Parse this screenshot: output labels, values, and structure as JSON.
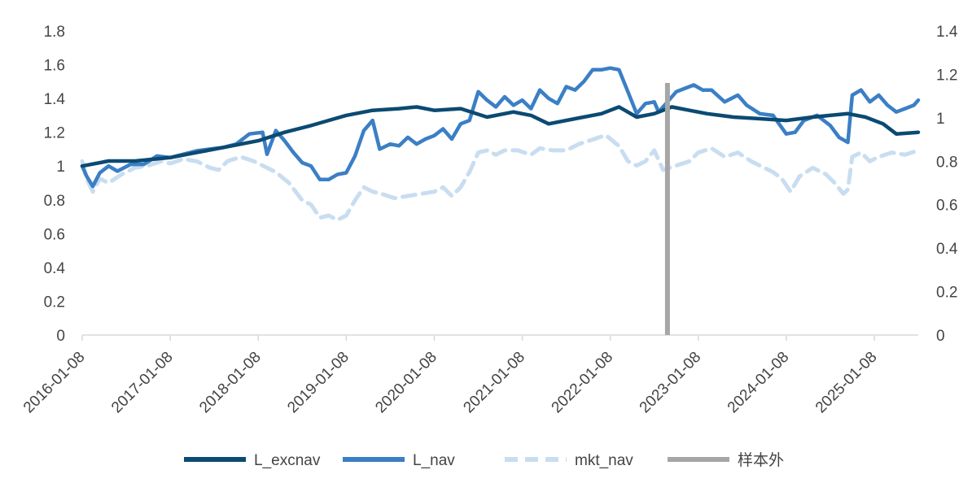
{
  "chart_data": {
    "type": "line",
    "title": "",
    "y_left": {
      "ticks": [
        "0",
        "0.2",
        "0.4",
        "0.6",
        "0.8",
        "1",
        "1.2",
        "1.4",
        "1.6",
        "1.8"
      ],
      "range": [
        0,
        1.8
      ]
    },
    "y_right": {
      "ticks": [
        "0",
        "0.2",
        "0.4",
        "0.6",
        "0.8",
        "1",
        "1.2",
        "1.4"
      ],
      "range": [
        0,
        1.4
      ]
    },
    "x": {
      "range": [
        2016.0,
        2025.5
      ],
      "ticks": [
        {
          "label": "2016-01-08",
          "t": 2016.0
        },
        {
          "label": "2017-01-08",
          "t": 2017.0
        },
        {
          "label": "2018-01-08",
          "t": 2018.0
        },
        {
          "label": "2019-01-08",
          "t": 2019.0
        },
        {
          "label": "2020-01-08",
          "t": 2020.0
        },
        {
          "label": "2021-01-08",
          "t": 2021.0
        },
        {
          "label": "2022-01-08",
          "t": 2022.0
        },
        {
          "label": "2023-01-08",
          "t": 2023.0
        },
        {
          "label": "2024-01-08",
          "t": 2024.0
        },
        {
          "label": "2025-01-08",
          "t": 2025.0
        }
      ]
    },
    "out_of_sample_start": 2022.65,
    "series": [
      {
        "name": "L_excnav",
        "axis": "left",
        "color": "#0b4a72",
        "style": "solid",
        "points": [
          [
            2016.0,
            1.0
          ],
          [
            2016.3,
            1.03
          ],
          [
            2016.6,
            1.03
          ],
          [
            2017.0,
            1.05
          ],
          [
            2017.3,
            1.08
          ],
          [
            2017.6,
            1.11
          ],
          [
            2018.0,
            1.15
          ],
          [
            2018.3,
            1.2
          ],
          [
            2018.6,
            1.24
          ],
          [
            2018.8,
            1.27
          ],
          [
            2019.0,
            1.3
          ],
          [
            2019.3,
            1.33
          ],
          [
            2019.6,
            1.34
          ],
          [
            2019.8,
            1.35
          ],
          [
            2020.0,
            1.33
          ],
          [
            2020.3,
            1.34
          ],
          [
            2020.6,
            1.29
          ],
          [
            2020.9,
            1.32
          ],
          [
            2021.1,
            1.3
          ],
          [
            2021.3,
            1.25
          ],
          [
            2021.6,
            1.28
          ],
          [
            2021.9,
            1.31
          ],
          [
            2022.1,
            1.35
          ],
          [
            2022.3,
            1.29
          ],
          [
            2022.5,
            1.31
          ],
          [
            2022.7,
            1.35
          ],
          [
            2022.9,
            1.33
          ],
          [
            2023.1,
            1.31
          ],
          [
            2023.4,
            1.29
          ],
          [
            2023.7,
            1.28
          ],
          [
            2024.0,
            1.27
          ],
          [
            2024.3,
            1.29
          ],
          [
            2024.5,
            1.3
          ],
          [
            2024.7,
            1.31
          ],
          [
            2024.9,
            1.29
          ],
          [
            2025.1,
            1.25
          ],
          [
            2025.25,
            1.19
          ],
          [
            2025.5,
            1.2
          ]
        ]
      },
      {
        "name": "L_nav",
        "axis": "left",
        "color": "#3b7fc5",
        "style": "solid",
        "points": [
          [
            2016.0,
            1.0
          ],
          [
            2016.05,
            0.94
          ],
          [
            2016.12,
            0.88
          ],
          [
            2016.2,
            0.96
          ],
          [
            2016.3,
            1.0
          ],
          [
            2016.4,
            0.97
          ],
          [
            2016.55,
            1.01
          ],
          [
            2016.7,
            1.01
          ],
          [
            2016.85,
            1.06
          ],
          [
            2017.0,
            1.05
          ],
          [
            2017.15,
            1.07
          ],
          [
            2017.3,
            1.09
          ],
          [
            2017.45,
            1.1
          ],
          [
            2017.6,
            1.11
          ],
          [
            2017.75,
            1.13
          ],
          [
            2017.9,
            1.19
          ],
          [
            2018.05,
            1.2
          ],
          [
            2018.1,
            1.07
          ],
          [
            2018.2,
            1.21
          ],
          [
            2018.3,
            1.15
          ],
          [
            2018.4,
            1.08
          ],
          [
            2018.5,
            1.02
          ],
          [
            2018.6,
            1.0
          ],
          [
            2018.7,
            0.92
          ],
          [
            2018.8,
            0.92
          ],
          [
            2018.9,
            0.95
          ],
          [
            2019.0,
            0.96
          ],
          [
            2019.1,
            1.06
          ],
          [
            2019.2,
            1.21
          ],
          [
            2019.3,
            1.27
          ],
          [
            2019.38,
            1.1
          ],
          [
            2019.5,
            1.13
          ],
          [
            2019.6,
            1.12
          ],
          [
            2019.7,
            1.17
          ],
          [
            2019.8,
            1.13
          ],
          [
            2019.9,
            1.16
          ],
          [
            2020.0,
            1.18
          ],
          [
            2020.1,
            1.22
          ],
          [
            2020.2,
            1.16
          ],
          [
            2020.3,
            1.25
          ],
          [
            2020.4,
            1.27
          ],
          [
            2020.5,
            1.44
          ],
          [
            2020.6,
            1.39
          ],
          [
            2020.7,
            1.35
          ],
          [
            2020.8,
            1.41
          ],
          [
            2020.9,
            1.36
          ],
          [
            2021.0,
            1.39
          ],
          [
            2021.1,
            1.34
          ],
          [
            2021.2,
            1.45
          ],
          [
            2021.3,
            1.4
          ],
          [
            2021.4,
            1.37
          ],
          [
            2021.5,
            1.47
          ],
          [
            2021.6,
            1.45
          ],
          [
            2021.7,
            1.5
          ],
          [
            2021.8,
            1.57
          ],
          [
            2021.9,
            1.57
          ],
          [
            2022.0,
            1.58
          ],
          [
            2022.1,
            1.57
          ],
          [
            2022.2,
            1.44
          ],
          [
            2022.3,
            1.31
          ],
          [
            2022.4,
            1.37
          ],
          [
            2022.5,
            1.38
          ],
          [
            2022.55,
            1.32
          ],
          [
            2022.65,
            1.38
          ],
          [
            2022.75,
            1.44
          ],
          [
            2022.85,
            1.46
          ],
          [
            2022.95,
            1.48
          ],
          [
            2023.05,
            1.45
          ],
          [
            2023.15,
            1.45
          ],
          [
            2023.3,
            1.38
          ],
          [
            2023.45,
            1.42
          ],
          [
            2023.55,
            1.36
          ],
          [
            2023.7,
            1.31
          ],
          [
            2023.85,
            1.3
          ],
          [
            2024.0,
            1.19
          ],
          [
            2024.1,
            1.2
          ],
          [
            2024.2,
            1.27
          ],
          [
            2024.35,
            1.3
          ],
          [
            2024.5,
            1.24
          ],
          [
            2024.6,
            1.17
          ],
          [
            2024.7,
            1.14
          ],
          [
            2024.75,
            1.42
          ],
          [
            2024.85,
            1.45
          ],
          [
            2024.95,
            1.38
          ],
          [
            2025.05,
            1.42
          ],
          [
            2025.15,
            1.36
          ],
          [
            2025.25,
            1.32
          ],
          [
            2025.35,
            1.34
          ],
          [
            2025.45,
            1.36
          ],
          [
            2025.5,
            1.39
          ]
        ]
      },
      {
        "name": "mkt_nav",
        "axis": "right",
        "color": "#c8ddf0",
        "style": "dashed",
        "points": [
          [
            2016.0,
            0.8
          ],
          [
            2016.05,
            0.72
          ],
          [
            2016.12,
            0.66
          ],
          [
            2016.2,
            0.72
          ],
          [
            2016.3,
            0.7
          ],
          [
            2016.45,
            0.74
          ],
          [
            2016.6,
            0.77
          ],
          [
            2016.75,
            0.78
          ],
          [
            2016.9,
            0.8
          ],
          [
            2017.0,
            0.79
          ],
          [
            2017.15,
            0.81
          ],
          [
            2017.3,
            0.8
          ],
          [
            2017.45,
            0.77
          ],
          [
            2017.55,
            0.76
          ],
          [
            2017.65,
            0.8
          ],
          [
            2017.8,
            0.82
          ],
          [
            2017.95,
            0.8
          ],
          [
            2018.05,
            0.78
          ],
          [
            2018.2,
            0.75
          ],
          [
            2018.35,
            0.7
          ],
          [
            2018.5,
            0.62
          ],
          [
            2018.6,
            0.6
          ],
          [
            2018.7,
            0.54
          ],
          [
            2018.8,
            0.55
          ],
          [
            2018.9,
            0.53
          ],
          [
            2019.0,
            0.55
          ],
          [
            2019.1,
            0.62
          ],
          [
            2019.2,
            0.68
          ],
          [
            2019.3,
            0.66
          ],
          [
            2019.4,
            0.65
          ],
          [
            2019.55,
            0.63
          ],
          [
            2019.7,
            0.64
          ],
          [
            2019.85,
            0.65
          ],
          [
            2020.0,
            0.66
          ],
          [
            2020.1,
            0.68
          ],
          [
            2020.2,
            0.64
          ],
          [
            2020.3,
            0.68
          ],
          [
            2020.4,
            0.75
          ],
          [
            2020.5,
            0.84
          ],
          [
            2020.6,
            0.85
          ],
          [
            2020.7,
            0.83
          ],
          [
            2020.8,
            0.85
          ],
          [
            2020.95,
            0.85
          ],
          [
            2021.1,
            0.83
          ],
          [
            2021.2,
            0.86
          ],
          [
            2021.35,
            0.85
          ],
          [
            2021.5,
            0.85
          ],
          [
            2021.65,
            0.88
          ],
          [
            2021.8,
            0.9
          ],
          [
            2021.95,
            0.92
          ],
          [
            2022.1,
            0.87
          ],
          [
            2022.2,
            0.8
          ],
          [
            2022.3,
            0.78
          ],
          [
            2022.4,
            0.8
          ],
          [
            2022.5,
            0.85
          ],
          [
            2022.6,
            0.76
          ],
          [
            2022.75,
            0.78
          ],
          [
            2022.9,
            0.8
          ],
          [
            2023.0,
            0.84
          ],
          [
            2023.15,
            0.86
          ],
          [
            2023.3,
            0.82
          ],
          [
            2023.45,
            0.84
          ],
          [
            2023.6,
            0.8
          ],
          [
            2023.75,
            0.77
          ],
          [
            2023.85,
            0.75
          ],
          [
            2023.95,
            0.72
          ],
          [
            2024.05,
            0.66
          ],
          [
            2024.15,
            0.73
          ],
          [
            2024.3,
            0.77
          ],
          [
            2024.45,
            0.74
          ],
          [
            2024.55,
            0.7
          ],
          [
            2024.65,
            0.65
          ],
          [
            2024.7,
            0.67
          ],
          [
            2024.75,
            0.82
          ],
          [
            2024.85,
            0.84
          ],
          [
            2024.95,
            0.8
          ],
          [
            2025.05,
            0.82
          ],
          [
            2025.2,
            0.84
          ],
          [
            2025.35,
            0.83
          ],
          [
            2025.5,
            0.85
          ]
        ]
      }
    ],
    "legend": [
      {
        "label": "L_excnav",
        "color": "#0b4a72",
        "style": "solid"
      },
      {
        "label": "L_nav",
        "color": "#3b7fc5",
        "style": "solid"
      },
      {
        "label": "mkt_nav",
        "color": "#c8ddf0",
        "style": "dashed"
      },
      {
        "label": "样本外",
        "color": "#a6a6a6",
        "style": "solid"
      }
    ],
    "oos_color": "#a6a6a6",
    "axis_color": "#d9d9d9"
  }
}
